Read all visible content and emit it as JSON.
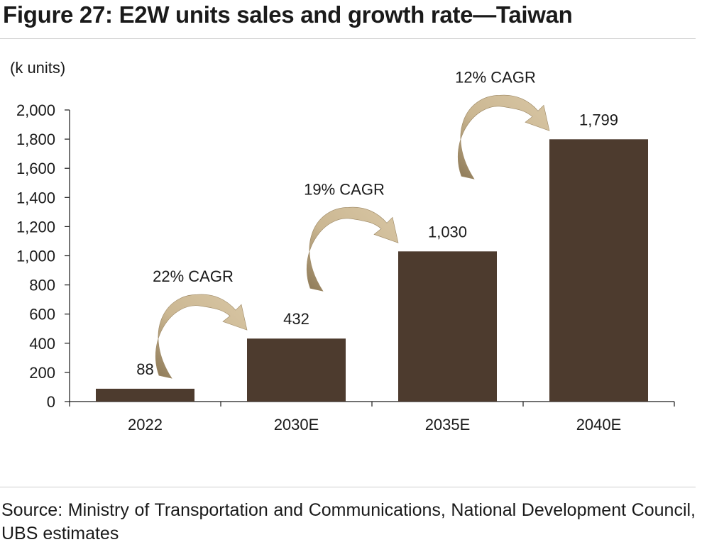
{
  "figure": {
    "title": "Figure 27: E2W units sales and growth rate—Taiwan",
    "source": "Source: Ministry of Transportation and Communications, National Development Council, UBS estimates"
  },
  "chart_data": {
    "type": "bar",
    "title": "Figure 27: E2W units sales and growth rate—Taiwan",
    "ylabel": "(k units)",
    "xlabel": "",
    "categories": [
      "2022",
      "2030E",
      "2035E",
      "2040E"
    ],
    "values": [
      88,
      432,
      1030,
      1799
    ],
    "value_labels": [
      "88",
      "432",
      "1,030",
      "1,799"
    ],
    "ylim": [
      0,
      2000
    ],
    "yticks": [
      "0",
      "200",
      "400",
      "600",
      "800",
      "1,000",
      "1,200",
      "1,400",
      "1,600",
      "1,800",
      "2,000"
    ],
    "grid": false,
    "legend": "none",
    "bar_color": "#4d3b2e",
    "arrow_color": "#b9a27c",
    "annotations": [
      {
        "text": "22% CAGR",
        "from": "2022",
        "to": "2030E"
      },
      {
        "text": "19% CAGR",
        "from": "2030E",
        "to": "2035E"
      },
      {
        "text": "12% CAGR",
        "from": "2035E",
        "to": "2040E"
      }
    ]
  }
}
